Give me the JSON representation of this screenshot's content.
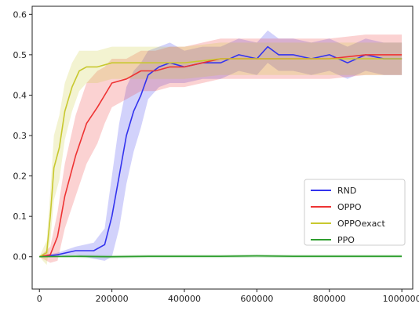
{
  "chart_data": {
    "type": "line",
    "title": "",
    "xlabel": "",
    "ylabel": "",
    "xlim": [
      -20000,
      1030000
    ],
    "ylim": [
      -0.08,
      0.62
    ],
    "x_ticks": [
      0,
      200000,
      400000,
      600000,
      800000,
      1000000
    ],
    "x_tick_labels": [
      "0",
      "200000",
      "400000",
      "600000",
      "800000",
      "1000000"
    ],
    "y_ticks": [
      0.0,
      0.1,
      0.2,
      0.3,
      0.4,
      0.5,
      0.6
    ],
    "y_tick_labels": [
      "0.0",
      "0.1",
      "0.2",
      "0.3",
      "0.4",
      "0.5",
      "0.6"
    ],
    "grid": false,
    "legend_position": "lower-right",
    "series": [
      {
        "name": "RND",
        "color": "#3333ee",
        "x": [
          0,
          50000,
          100000,
          150000,
          180000,
          200000,
          220000,
          240000,
          260000,
          280000,
          300000,
          330000,
          360000,
          400000,
          450000,
          500000,
          550000,
          600000,
          630000,
          660000,
          700000,
          750000,
          800000,
          850000,
          900000,
          950000,
          1000000
        ],
        "y": [
          0.0,
          0.005,
          0.015,
          0.015,
          0.03,
          0.1,
          0.2,
          0.3,
          0.36,
          0.4,
          0.45,
          0.47,
          0.48,
          0.47,
          0.48,
          0.48,
          0.5,
          0.49,
          0.52,
          0.5,
          0.5,
          0.49,
          0.5,
          0.48,
          0.5,
          0.49,
          0.49
        ],
        "band_width": [
          0.0,
          0.005,
          0.01,
          0.02,
          0.04,
          0.1,
          0.13,
          0.12,
          0.1,
          0.08,
          0.06,
          0.05,
          0.05,
          0.04,
          0.04,
          0.04,
          0.04,
          0.04,
          0.04,
          0.04,
          0.04,
          0.04,
          0.04,
          0.04,
          0.04,
          0.04,
          0.04
        ]
      },
      {
        "name": "OPPO",
        "color": "#ee3333",
        "x": [
          0,
          30000,
          50000,
          70000,
          100000,
          130000,
          160000,
          180000,
          200000,
          240000,
          280000,
          320000,
          360000,
          400000,
          450000,
          500000,
          600000,
          700000,
          800000,
          900000,
          1000000
        ],
        "y": [
          0.0,
          0.005,
          0.05,
          0.15,
          0.25,
          0.33,
          0.37,
          0.4,
          0.43,
          0.44,
          0.46,
          0.46,
          0.47,
          0.47,
          0.48,
          0.49,
          0.49,
          0.49,
          0.49,
          0.5,
          0.5
        ],
        "band_width": [
          0.0,
          0.02,
          0.06,
          0.08,
          0.1,
          0.1,
          0.09,
          0.07,
          0.06,
          0.05,
          0.05,
          0.05,
          0.05,
          0.05,
          0.05,
          0.05,
          0.05,
          0.05,
          0.05,
          0.05,
          0.05
        ]
      },
      {
        "name": "OPPOexact",
        "color": "#c8c82e",
        "x": [
          0,
          20000,
          30000,
          40000,
          55000,
          70000,
          90000,
          110000,
          130000,
          160000,
          200000,
          250000,
          300000,
          400000,
          500000,
          600000,
          700000,
          800000,
          900000,
          1000000
        ],
        "y": [
          0.0,
          0.01,
          0.1,
          0.22,
          0.27,
          0.36,
          0.42,
          0.46,
          0.47,
          0.47,
          0.48,
          0.48,
          0.48,
          0.48,
          0.49,
          0.49,
          0.49,
          0.49,
          0.49,
          0.49
        ],
        "band_width": [
          0.0,
          0.03,
          0.06,
          0.08,
          0.08,
          0.07,
          0.06,
          0.05,
          0.04,
          0.04,
          0.04,
          0.04,
          0.04,
          0.04,
          0.04,
          0.04,
          0.04,
          0.04,
          0.04,
          0.04
        ]
      },
      {
        "name": "PPO",
        "color": "#2e9e2e",
        "x": [
          0,
          100000,
          200000,
          300000,
          400000,
          500000,
          600000,
          700000,
          800000,
          900000,
          1000000
        ],
        "y": [
          0.0,
          0.001,
          0.0,
          0.001,
          0.001,
          0.001,
          0.002,
          0.001,
          0.001,
          0.001,
          0.001
        ],
        "band_width": [
          0.0,
          0.004,
          0.004,
          0.004,
          0.004,
          0.004,
          0.004,
          0.004,
          0.004,
          0.004,
          0.004
        ]
      }
    ]
  }
}
